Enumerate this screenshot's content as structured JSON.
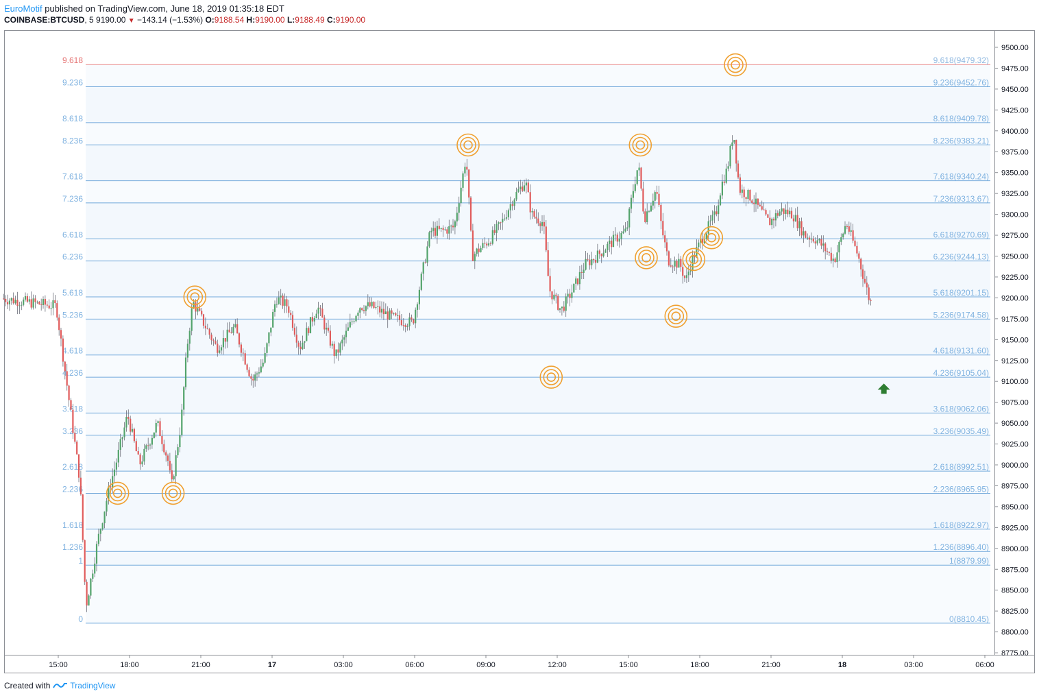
{
  "header": {
    "author": "EuroMotif",
    "published_text": "published on TradingView.com, June 18, 2019 01:35:18 EDT",
    "symbol": "COINBASE:BTCUSD",
    "interval": "5",
    "last_price": "9190.00",
    "change": "−143.14 (−1.53%)",
    "open_label": "O:",
    "open_value": "9188.54",
    "high_label": "H:",
    "high_value": "9190.00",
    "low_label": "L:",
    "low_value": "9188.49",
    "close_label": "C:",
    "close_value": "9190.00"
  },
  "footer": {
    "created_with": "Created with",
    "brand": "TradingView"
  },
  "colors": {
    "up": "#53a36b",
    "down": "#e05b5b",
    "fib_line": "#5b9bd5",
    "fib_text": "#7fb2e0",
    "fib_top": "#e57373",
    "circle": "#f0a030",
    "arrow": "#2e7d32"
  },
  "chart_data": {
    "type": "candlestick",
    "y_axis": {
      "min": 8775,
      "max": 9500,
      "ticks": [
        "9500.00",
        "9475.00",
        "9450.00",
        "9425.00",
        "9400.00",
        "9375.00",
        "9350.00",
        "9325.00",
        "9300.00",
        "9275.00",
        "9250.00",
        "9225.00",
        "9200.00",
        "9175.00",
        "9150.00",
        "9125.00",
        "9100.00",
        "9075.00",
        "9050.00",
        "9025.00",
        "9000.00",
        "8975.00",
        "8950.00",
        "8925.00",
        "8900.00",
        "8875.00",
        "8850.00",
        "8825.00",
        "8800.00",
        "8775.00"
      ]
    },
    "x_axis": {
      "ticks": [
        {
          "label": "15:00",
          "bold": false
        },
        {
          "label": "18:00",
          "bold": false
        },
        {
          "label": "21:00",
          "bold": false
        },
        {
          "label": "17",
          "bold": true
        },
        {
          "label": "03:00",
          "bold": false
        },
        {
          "label": "06:00",
          "bold": false
        },
        {
          "label": "09:00",
          "bold": false
        },
        {
          "label": "12:00",
          "bold": false
        },
        {
          "label": "15:00",
          "bold": false
        },
        {
          "label": "18:00",
          "bold": false
        },
        {
          "label": "21:00",
          "bold": false
        },
        {
          "label": "18",
          "bold": true
        },
        {
          "label": "03:00",
          "bold": false
        },
        {
          "label": "06:00",
          "bold": false
        }
      ]
    },
    "fib_levels": [
      {
        "ratio": "9.618",
        "price": 9479.32,
        "label": "9.618(9479.32)",
        "top": true
      },
      {
        "ratio": "9.236",
        "price": 9452.76,
        "label": "9.236(9452.76)"
      },
      {
        "ratio": "8.618",
        "price": 9409.78,
        "label": "8.618(9409.78)"
      },
      {
        "ratio": "8.236",
        "price": 9383.21,
        "label": "8.236(9383.21)"
      },
      {
        "ratio": "7.618",
        "price": 9340.24,
        "label": "7.618(9340.24)"
      },
      {
        "ratio": "7.236",
        "price": 9313.67,
        "label": "7.236(9313.67)"
      },
      {
        "ratio": "6.618",
        "price": 9270.69,
        "label": "6.618(9270.69)"
      },
      {
        "ratio": "6.236",
        "price": 9244.13,
        "label": "6.236(9244.13)"
      },
      {
        "ratio": "5.618",
        "price": 9201.15,
        "label": "5.618(9201.15)"
      },
      {
        "ratio": "5.236",
        "price": 9174.58,
        "label": "5.236(9174.58)"
      },
      {
        "ratio": "4.618",
        "price": 9131.6,
        "label": "4.618(9131.60)"
      },
      {
        "ratio": "4.236",
        "price": 9105.04,
        "label": "4.236(9105.04)"
      },
      {
        "ratio": "3.618",
        "price": 9062.06,
        "label": "3.618(9062.06)"
      },
      {
        "ratio": "3.236",
        "price": 9035.49,
        "label": "3.236(9035.49)"
      },
      {
        "ratio": "2.618",
        "price": 8992.51,
        "label": "2.618(8992.51)"
      },
      {
        "ratio": "2.236",
        "price": 8965.95,
        "label": "2.236(8965.95)"
      },
      {
        "ratio": "1.618",
        "price": 8922.97,
        "label": "1.618(8922.97)"
      },
      {
        "ratio": "1.236",
        "price": 8896.4,
        "label": "1.236(8896.40)"
      },
      {
        "ratio": "1",
        "price": 8879.99,
        "label": "1(8879.99)"
      },
      {
        "ratio": "0",
        "price": 8810.45,
        "label": "0(8810.45)"
      }
    ],
    "price_path": [
      [
        "15:00",
        9190
      ],
      [
        "16:00",
        8980
      ],
      [
        "16:15",
        8830
      ],
      [
        "16:45",
        8910
      ],
      [
        "17:15",
        8975
      ],
      [
        "17:30",
        9000
      ],
      [
        "18:00",
        9060
      ],
      [
        "18:30",
        9000
      ],
      [
        "19:15",
        9050
      ],
      [
        "19:45",
        9000
      ],
      [
        "19:50",
        8970
      ],
      [
        "20:15",
        9050
      ],
      [
        "20:30",
        9140
      ],
      [
        "20:45",
        9195
      ],
      [
        "21:45",
        9140
      ],
      [
        "22:30",
        9165
      ],
      [
        "23:15",
        9100
      ],
      [
        "23:45",
        9125
      ],
      [
        "00:15",
        9200
      ],
      [
        "00:45",
        9190
      ],
      [
        "01:15",
        9140
      ],
      [
        "02:00",
        9190
      ],
      [
        "02:45",
        9130
      ],
      [
        "03:45",
        9190
      ],
      [
        "04:15",
        9190
      ],
      [
        "05:15",
        9175
      ],
      [
        "06:00",
        9170
      ],
      [
        "06:45",
        9280
      ],
      [
        "07:15",
        9280
      ],
      [
        "07:45",
        9285
      ],
      [
        "08:15",
        9370
      ],
      [
        "08:30",
        9250
      ],
      [
        "09:15",
        9270
      ],
      [
        "09:45",
        9290
      ],
      [
        "10:15",
        9320
      ],
      [
        "10:45",
        9340
      ],
      [
        "11:00",
        9300
      ],
      [
        "11:30",
        9290
      ],
      [
        "11:45",
        9210
      ],
      [
        "12:15",
        9185
      ],
      [
        "12:45",
        9210
      ],
      [
        "13:15",
        9240
      ],
      [
        "13:45",
        9250
      ],
      [
        "14:30",
        9270
      ],
      [
        "15:00",
        9280
      ],
      [
        "15:15",
        9325
      ],
      [
        "15:30",
        9360
      ],
      [
        "15:45",
        9295
      ],
      [
        "16:15",
        9330
      ],
      [
        "16:30",
        9280
      ],
      [
        "16:45",
        9245
      ],
      [
        "17:15",
        9240
      ],
      [
        "17:30",
        9220
      ],
      [
        "17:45",
        9245
      ],
      [
        "18:15",
        9275
      ],
      [
        "18:45",
        9300
      ],
      [
        "19:00",
        9335
      ],
      [
        "19:15",
        9355
      ],
      [
        "19:30",
        9400
      ],
      [
        "19:45",
        9330
      ],
      [
        "20:15",
        9320
      ],
      [
        "21:00",
        9290
      ],
      [
        "21:30",
        9305
      ],
      [
        "22:00",
        9300
      ],
      [
        "22:30",
        9275
      ],
      [
        "23:00",
        9270
      ],
      [
        "23:45",
        9245
      ],
      [
        "00:15",
        9290
      ],
      [
        "00:45",
        9250
      ],
      [
        "01:15",
        9195
      ]
    ],
    "markers": [
      {
        "type": "target-circle",
        "at": "17:30",
        "price": 8966
      },
      {
        "type": "target-circle",
        "at": "19:50",
        "price": 8966
      },
      {
        "type": "target-circle",
        "at": "20:45",
        "price": 9201
      },
      {
        "type": "target-circle",
        "at": "08:15",
        "price": 9383
      },
      {
        "type": "target-circle",
        "at": "11:45",
        "price": 9105
      },
      {
        "type": "target-circle",
        "at": "15:30",
        "price": 9383
      },
      {
        "type": "target-circle",
        "at": "15:45",
        "price": 9248
      },
      {
        "type": "target-circle",
        "at": "17:00",
        "price": 9178
      },
      {
        "type": "target-circle",
        "at": "17:45",
        "price": 9246
      },
      {
        "type": "target-circle",
        "at": "18:30",
        "price": 9272
      },
      {
        "type": "target-circle",
        "at": "19:30",
        "price": 9479
      },
      {
        "type": "up-arrow",
        "at": "01:45",
        "price": 9090
      }
    ]
  }
}
